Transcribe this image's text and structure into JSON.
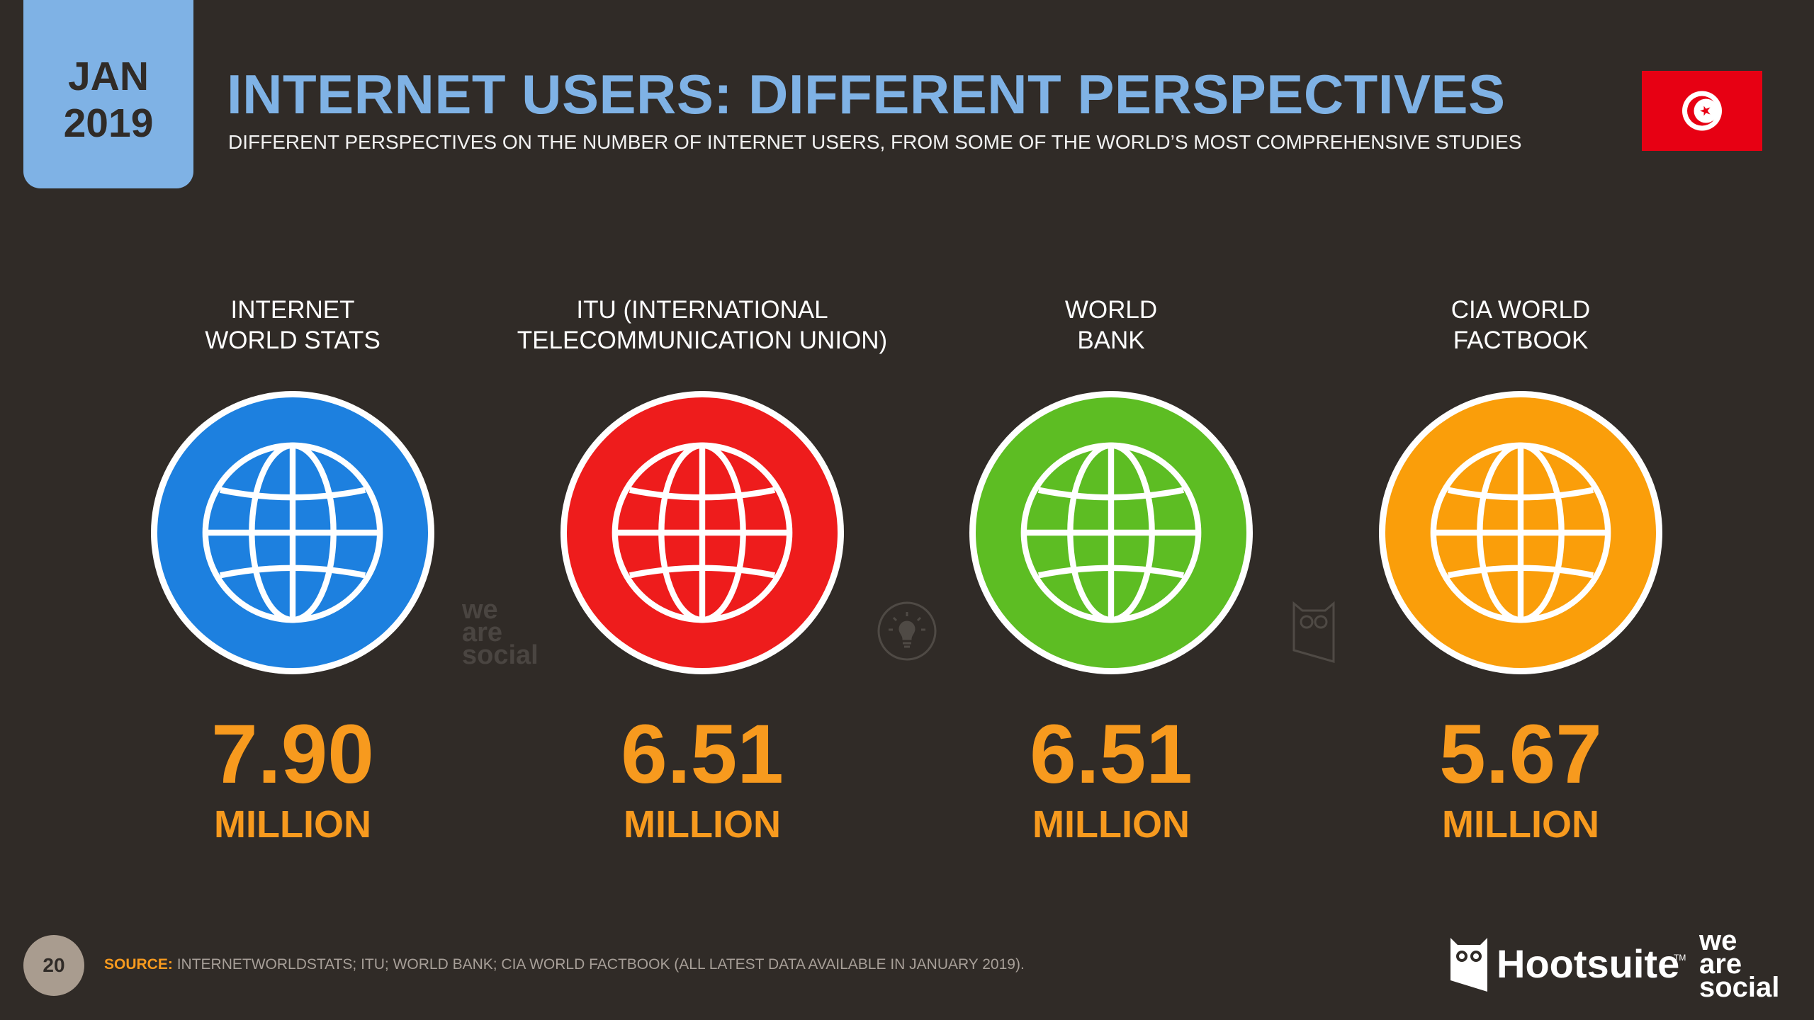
{
  "header": {
    "date_month": "JAN",
    "date_year": "2019",
    "title": "INTERNET USERS: DIFFERENT PERSPECTIVES",
    "subtitle": "DIFFERENT PERSPECTIVES ON THE NUMBER OF INTERNET USERS, FROM SOME OF THE WORLD’S MOST COMPREHENSIVE STUDIES",
    "flag_icon": "tunisia-flag-icon"
  },
  "sources": [
    {
      "label_line1": "INTERNET",
      "label_line2": "WORLD STATS",
      "value": "7.90",
      "unit": "MILLION",
      "color": "#1d80df",
      "icon": "globe-icon"
    },
    {
      "label_line1": "ITU (INTERNATIONAL",
      "label_line2": "TELECOMMUNICATION UNION)",
      "value": "6.51",
      "unit": "MILLION",
      "color": "#ee1c1c",
      "icon": "globe-icon"
    },
    {
      "label_line1": "WORLD",
      "label_line2": "BANK",
      "value": "6.51",
      "unit": "MILLION",
      "color": "#5dbd23",
      "icon": "globe-icon"
    },
    {
      "label_line1": "CIA WORLD",
      "label_line2": "FACTBOOK",
      "value": "5.67",
      "unit": "MILLION",
      "color": "#fa9e0a",
      "icon": "globe-icon"
    }
  ],
  "watermarks": {
    "we_are_social": [
      "we",
      "are",
      "social"
    ],
    "bulb_icon": "lightbulb-icon",
    "owl_icon": "owl-icon"
  },
  "footer": {
    "page_number": "20",
    "source_label": "SOURCE:",
    "source_text": "INTERNETWORLDSTATS; ITU; WORLD BANK; CIA WORLD FACTBOOK (ALL LATEST DATA AVAILABLE IN JANUARY 2019).",
    "brand_hootsuite": "Hootsuite",
    "brand_tm": "TM",
    "brand_was": [
      "we",
      "are",
      "social"
    ]
  },
  "colors": {
    "background": "#302b27",
    "title_blue": "#7fb2e5",
    "value_orange": "#f79a1e"
  }
}
